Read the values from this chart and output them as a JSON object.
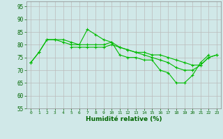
{
  "x": [
    0,
    1,
    2,
    3,
    4,
    5,
    6,
    7,
    8,
    9,
    10,
    11,
    12,
    13,
    14,
    15,
    16,
    17,
    18,
    19,
    20,
    21,
    22,
    23
  ],
  "series1": [
    73,
    77,
    82,
    82,
    81,
    80,
    80,
    86,
    84,
    82,
    81,
    76,
    75,
    75,
    74,
    74,
    70,
    69,
    65,
    65,
    68,
    73,
    76,
    null
  ],
  "series2": [
    73,
    77,
    82,
    82,
    82,
    81,
    80,
    80,
    80,
    80,
    81,
    79,
    78,
    77,
    77,
    76,
    76,
    75,
    74,
    73,
    72,
    72,
    75,
    76
  ],
  "series3": [
    73,
    null,
    null,
    null,
    null,
    79,
    79,
    79,
    79,
    79,
    80,
    79,
    78,
    77,
    76,
    75,
    74,
    73,
    71,
    70,
    70,
    72,
    75,
    76
  ],
  "line_color": "#00BB00",
  "marker": "+",
  "bg_color": "#D0E8E8",
  "grid_color": "#BBBBBB",
  "xlabel": "Humidité relative (%)",
  "ylim": [
    55,
    97
  ],
  "xlim": [
    -0.5,
    23.5
  ],
  "yticks": [
    55,
    60,
    65,
    70,
    75,
    80,
    85,
    90,
    95
  ],
  "xticks": [
    0,
    1,
    2,
    3,
    4,
    5,
    6,
    7,
    8,
    9,
    10,
    11,
    12,
    13,
    14,
    15,
    16,
    17,
    18,
    19,
    20,
    21,
    22,
    23
  ]
}
